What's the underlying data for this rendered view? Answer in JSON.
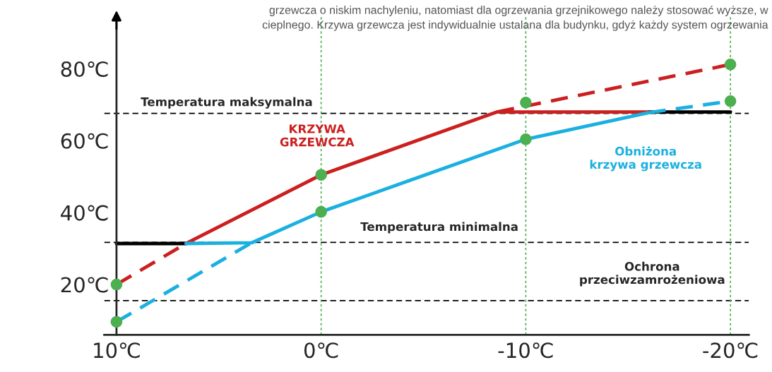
{
  "chart_data": {
    "type": "line",
    "annotations": [
      "grzewcza o niskim nachyleniu, natomiast dla ogrzewania grzejnikowego należy stosować wyższe, w",
      "cieplnego. Krzywa grzewcza jest indywidualnie ustalana dla budynku, gdyż każdy system ogrzewania",
      "Temperatura maksymalna",
      "Temperatura minimalna",
      "Ochrona\nprzeciwzamrożeniowa"
    ],
    "xlim": [
      10.6,
      -20.9
    ],
    "ylim": [
      6,
      95
    ],
    "xticks": [
      {
        "value": 10,
        "label": "10℃"
      },
      {
        "value": 0,
        "label": "0℃"
      },
      {
        "value": -10,
        "label": "-10℃"
      },
      {
        "value": -20,
        "label": "-20℃"
      }
    ],
    "yticks": [
      {
        "value": 20,
        "label": "20℃"
      },
      {
        "value": 40,
        "label": "40℃"
      },
      {
        "value": 60,
        "label": "60℃"
      },
      {
        "value": 80,
        "label": "80℃"
      }
    ],
    "ref_lines": [
      {
        "axis": "y",
        "value": 67.6,
        "color": "#000000",
        "line_style": "dashed"
      },
      {
        "axis": "y",
        "value": 31.7,
        "color": "#000000",
        "line_style": "dashed"
      },
      {
        "axis": "y",
        "value": 15.5,
        "color": "#000000",
        "line_style": "dashed"
      },
      {
        "axis": "x",
        "value": 0,
        "color": "#4caf50",
        "line_style": "dotted"
      },
      {
        "axis": "x",
        "value": -10,
        "color": "#4caf50",
        "line_style": "dotted"
      },
      {
        "axis": "x",
        "value": -20,
        "color": "#4caf50",
        "line_style": "dotted"
      }
    ],
    "series": [
      {
        "color": "#000000",
        "line_style": "solid",
        "x": [
          10,
          6.6
        ],
        "values": [
          31.4,
          31.4
        ]
      },
      {
        "color": "#000000",
        "line_style": "solid",
        "x": [
          -16,
          -20
        ],
        "values": [
          68,
          68
        ]
      },
      {
        "color": "#cc1f1f",
        "line_style": "dashed",
        "x": [
          10,
          6.6,
          0,
          -8.6,
          -20
        ],
        "values": [
          20,
          31.4,
          null,
          68,
          81.2
        ]
      },
      {
        "color": "#1ab0e0",
        "line_style": "dashed",
        "x": [
          10,
          3.4,
          0,
          -16,
          -20
        ],
        "values": [
          9.6,
          31.6,
          null,
          67.8,
          71
        ]
      },
      {
        "name": "KRZYWA\nGRZEWCZA",
        "color": "#cc1f1f",
        "line_style": "solid",
        "x": [
          6.6,
          0,
          -8.6,
          -16
        ],
        "values": [
          31.4,
          50.5,
          68,
          68
        ]
      },
      {
        "name": "Obniżona\nkrzywa grzewcza",
        "color": "#1ab0e0",
        "line_style": "solid",
        "x": [
          6.6,
          3.4,
          0,
          -10,
          -16
        ],
        "values": [
          31.4,
          31.6,
          40.2,
          60.4,
          67.8
        ]
      },
      {
        "type": "scatter",
        "color": "#4caf50",
        "marker": "circle",
        "x": [
          10,
          10,
          0,
          0,
          -10,
          -10,
          -20,
          -20
        ],
        "values": [
          20,
          9.6,
          50.5,
          40.2,
          70.6,
          60.4,
          81.2,
          71
        ]
      }
    ]
  }
}
